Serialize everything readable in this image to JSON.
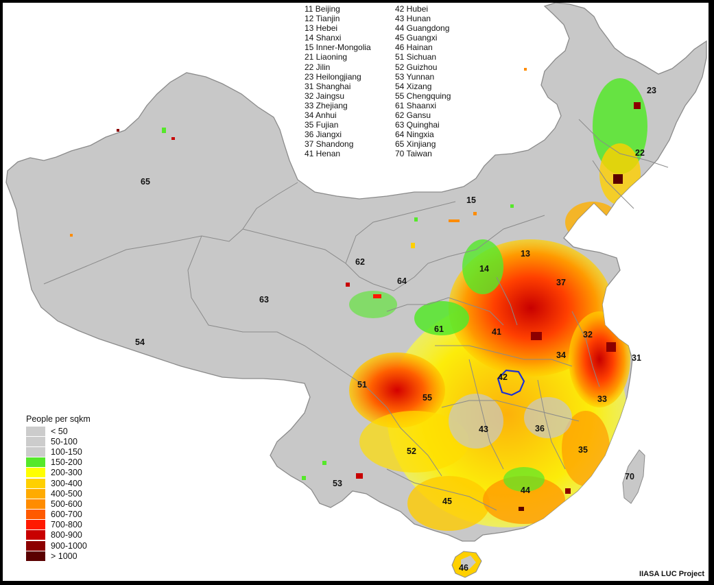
{
  "province_codes_col1": [
    "11 Beijing",
    "12 Tianjin",
    "13 Hebei",
    "14 Shanxi",
    "15 Inner-Mongolia",
    "21 Liaoning",
    "22 Jilin",
    "23 Heilongjiang",
    "31 Shanghai",
    "32 Jaingsu",
    "33 Zhejiang",
    "34 Anhui",
    "35 Fujian",
    "36 Jiangxi",
    "37 Shandong",
    "41 Henan"
  ],
  "province_codes_col2": [
    "42 Hubei",
    "43 Hunan",
    "44 Guangdong",
    "45 Guangxi",
    "46 Hainan",
    "51 Sichuan",
    "52 Guizhou",
    "53 Yunnan",
    "54 Xizang",
    "55 Chengquing",
    "61 Shaanxi",
    "62 Gansu",
    "63 Quinghai",
    "64 Ningxia",
    "65 Xinjiang",
    "70 Taiwan"
  ],
  "legend": {
    "title": "People per sqkm",
    "items": [
      {
        "label": "< 50",
        "color": "#cccccc"
      },
      {
        "label": "50-100",
        "color": "#cccccc"
      },
      {
        "label": "100-150",
        "color": "#cccccc"
      },
      {
        "label": "150-200",
        "color": "#55e82a"
      },
      {
        "label": "200-300",
        "color": "#ffff00"
      },
      {
        "label": "300-400",
        "color": "#ffd000"
      },
      {
        "label": "400-500",
        "color": "#ffab00"
      },
      {
        "label": "500-600",
        "color": "#ff8c00"
      },
      {
        "label": "600-700",
        "color": "#ff5a00"
      },
      {
        "label": "700-800",
        "color": "#ff1a00"
      },
      {
        "label": "800-900",
        "color": "#c80000"
      },
      {
        "label": "900-1000",
        "color": "#8c0000"
      },
      {
        "label": "> 1000",
        "color": "#5a0000"
      }
    ]
  },
  "province_labels": [
    "65",
    "15",
    "23",
    "22",
    "62",
    "64",
    "63",
    "14",
    "13",
    "37",
    "54",
    "61",
    "41",
    "32",
    "34",
    "31",
    "51",
    "42",
    "55",
    "33",
    "43",
    "36",
    "52",
    "35",
    "53",
    "70",
    "45",
    "44",
    "46"
  ],
  "credit": "IIASA LUC Project",
  "colors": {
    "land": "#c8c8c8",
    "border": "#8f8f8f",
    "highlight": "#1a2fd6"
  }
}
